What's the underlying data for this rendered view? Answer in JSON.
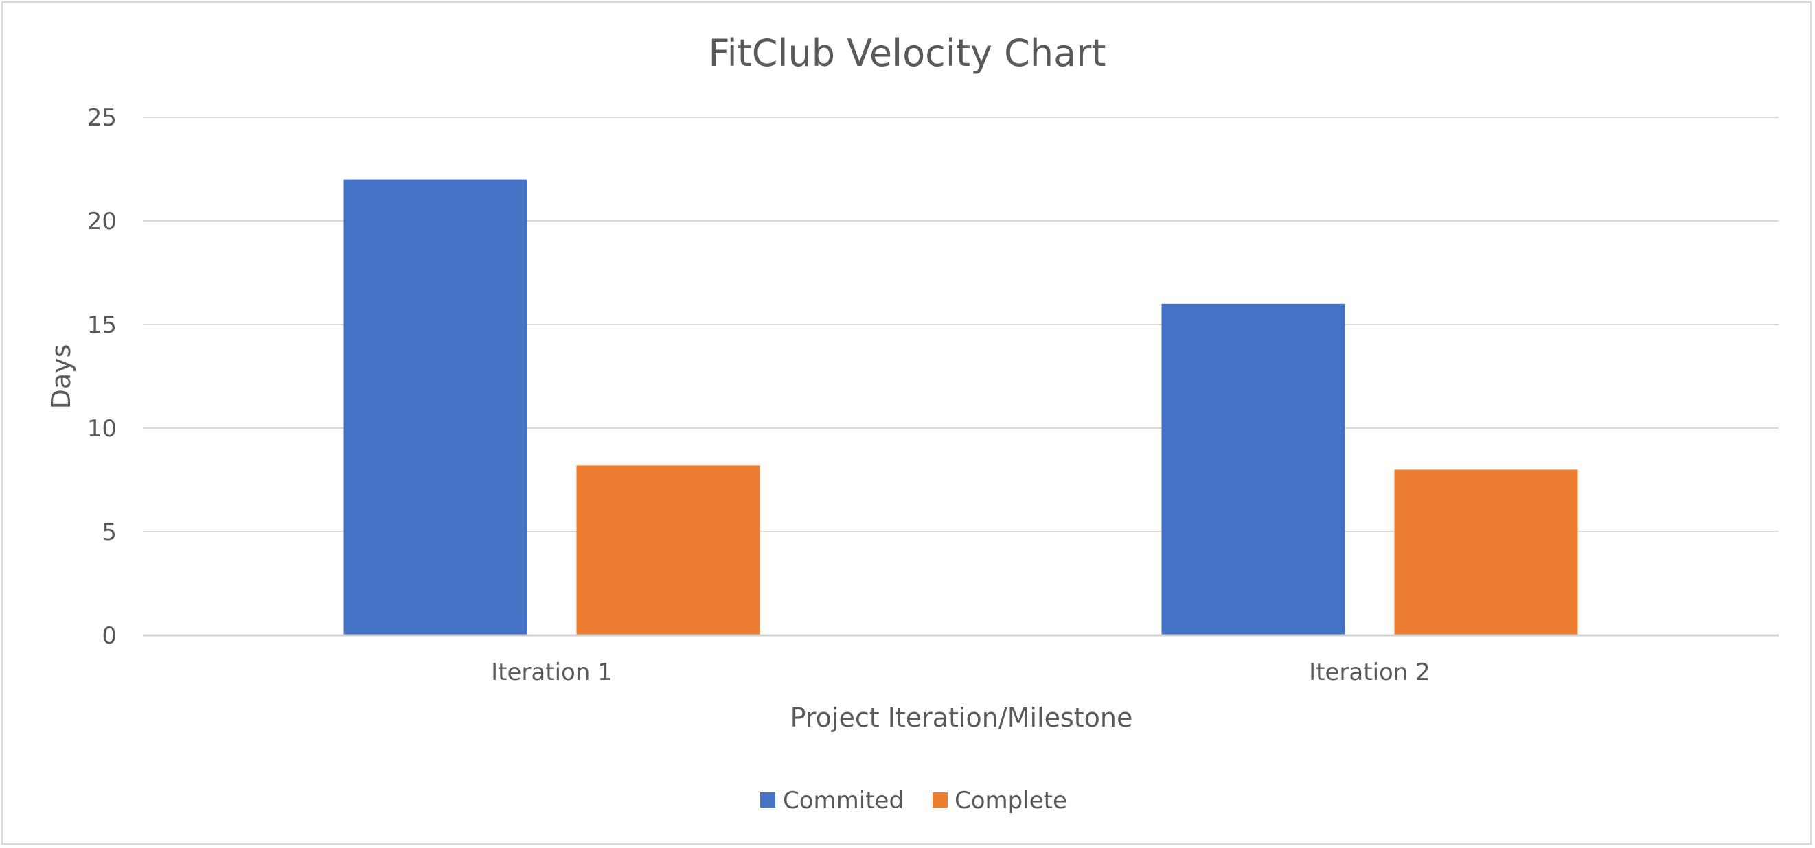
{
  "chart_data": {
    "type": "bar",
    "title": "FitClub Velocity Chart",
    "xlabel": "Project Iteration/Milestone",
    "ylabel": "Days",
    "categories": [
      "Iteration 1",
      "Iteration 2"
    ],
    "series": [
      {
        "name": "Commited",
        "values": [
          22,
          16
        ],
        "color": "#4472c4"
      },
      {
        "name": "Complete",
        "values": [
          8.2,
          8
        ],
        "color": "#ed7d31"
      }
    ],
    "ylim": [
      0,
      25
    ],
    "yticks": [
      0,
      5,
      10,
      15,
      20,
      25
    ],
    "ytick_labels": [
      "0",
      "5",
      "10",
      "15",
      "20",
      "25"
    ],
    "grid": true,
    "legend_position": "bottom"
  }
}
